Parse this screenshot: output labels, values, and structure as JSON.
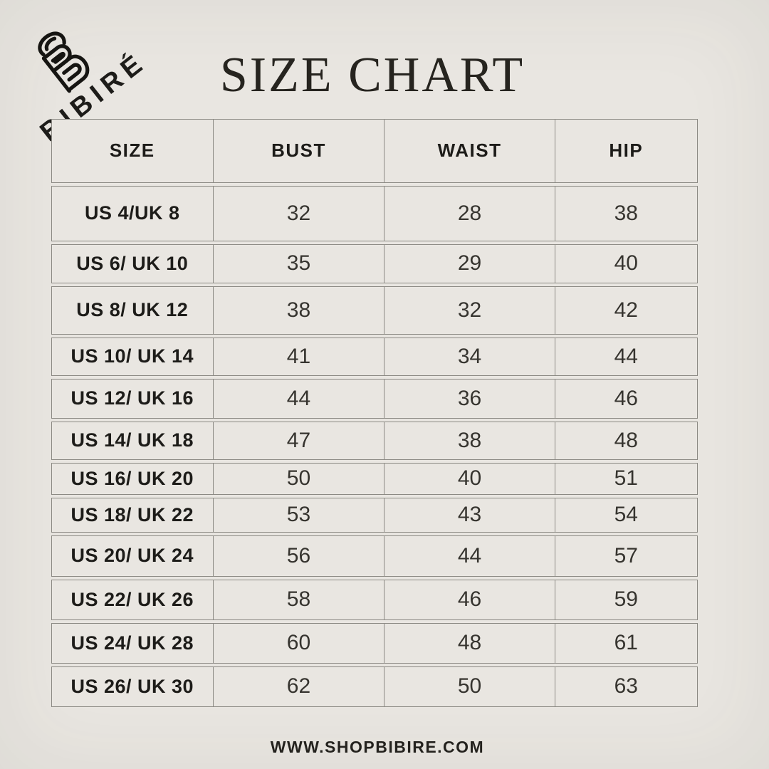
{
  "brand": {
    "name": "BIBIRÉ",
    "monogram_icon": "bibire-b-monogram"
  },
  "title": "SIZE CHART",
  "table": {
    "headers": [
      "SIZE",
      "BUST",
      "WAIST",
      "HIP"
    ],
    "rows": [
      {
        "size": "US 4/UK 8",
        "bust": "32",
        "waist": "28",
        "hip": "38"
      },
      {
        "size": "US 6/ UK 10",
        "bust": "35",
        "waist": "29",
        "hip": "40"
      },
      {
        "size": "US 8/ UK 12",
        "bust": "38",
        "waist": "32",
        "hip": "42"
      },
      {
        "size": "US 10/ UK 14",
        "bust": "41",
        "waist": "34",
        "hip": "44"
      },
      {
        "size": "US 12/ UK 16",
        "bust": "44",
        "waist": "36",
        "hip": "46"
      },
      {
        "size": "US 14/ UK 18",
        "bust": "47",
        "waist": "38",
        "hip": "48"
      },
      {
        "size": "US 16/ UK 20",
        "bust": "50",
        "waist": "40",
        "hip": "51"
      },
      {
        "size": "US 18/ UK 22",
        "bust": "53",
        "waist": "43",
        "hip": "54"
      },
      {
        "size": "US 20/ UK 24",
        "bust": "56",
        "waist": "44",
        "hip": "57"
      },
      {
        "size": "US 22/ UK 26",
        "bust": "58",
        "waist": "46",
        "hip": "59"
      },
      {
        "size": "US 24/ UK 28",
        "bust": "60",
        "waist": "48",
        "hip": "61"
      },
      {
        "size": "US 26/ UK 30",
        "bust": "62",
        "waist": "50",
        "hip": "63"
      }
    ]
  },
  "footer": {
    "website": "WWW.SHOPBIBIRE.COM"
  },
  "colors": {
    "background": "#e9e6e1",
    "border": "#8c8a84",
    "text_dark": "#1d1c19",
    "text_value": "#36342f"
  }
}
